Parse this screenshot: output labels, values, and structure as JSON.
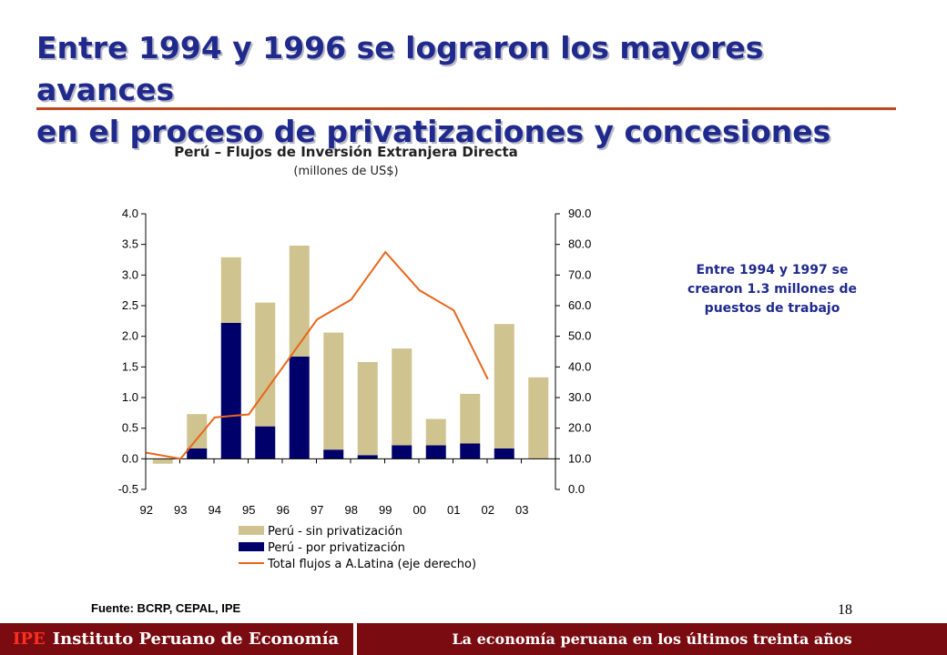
{
  "slide": {
    "title_line1": "Entre 1994 y 1996 se lograron los mayores avances",
    "title_line2": "en el proceso de privatizaciones y concesiones",
    "annotation": "Entre 1994 y 1997 se crearon 1.3 millones de puestos de trabajo",
    "source": "Fuente: BCRP, CEPAL, IPE",
    "page_number": "18"
  },
  "footer": {
    "brand": "IPE",
    "institute": "Instituto Peruano de Economía",
    "tagline": "La economía peruana en los últimos treinta años"
  },
  "colors": {
    "title": "#1f2a8c",
    "rule": "#c0461b",
    "bar_sin_privatizacion": "#cfc38f",
    "bar_por_privatizacion": "#00006b",
    "line_total": "#e8661c",
    "footer_bg": "#7a0b10"
  },
  "chart_data": {
    "type": "bar",
    "title": "Perú – Flujos de Inversión Extranjera Directa",
    "subtitle": "(millones de US$)",
    "categories": [
      "92",
      "93",
      "94",
      "95",
      "96",
      "97",
      "98",
      "99",
      "00",
      "01",
      "02",
      "03"
    ],
    "stacked": true,
    "ylim_left": [
      -0.5,
      4.0
    ],
    "yticks_left": [
      "4.0",
      "3.5",
      "3.0",
      "2.5",
      "2.0",
      "1.5",
      "1.0",
      "0.5",
      "0.0",
      "-0.5"
    ],
    "ylim_right": [
      0.0,
      90.0
    ],
    "yticks_right": [
      "90.0",
      "80.0",
      "70.0",
      "60.0",
      "50.0",
      "40.0",
      "30.0",
      "20.0",
      "10.0",
      "0.0"
    ],
    "series": [
      {
        "name": "Perú - sin privatización",
        "type": "bar",
        "values": [
          -0.08,
          0.56,
          1.07,
          2.02,
          1.81,
          1.91,
          1.52,
          1.58,
          0.43,
          0.81,
          2.03,
          1.33
        ]
      },
      {
        "name": "Perú - por privatización",
        "type": "bar",
        "values": [
          0.0,
          0.17,
          2.22,
          0.53,
          1.67,
          0.15,
          0.06,
          0.22,
          0.22,
          0.25,
          0.17,
          0.0
        ]
      },
      {
        "name": "Total flujos a A.Latina (eje derecho)",
        "type": "line",
        "axis": "right",
        "values": [
          12.0,
          10.0,
          23.5,
          24.5,
          40.0,
          55.5,
          62.0,
          77.5,
          65.0,
          58.5,
          36.0,
          null
        ]
      }
    ],
    "legend": "bottom"
  }
}
